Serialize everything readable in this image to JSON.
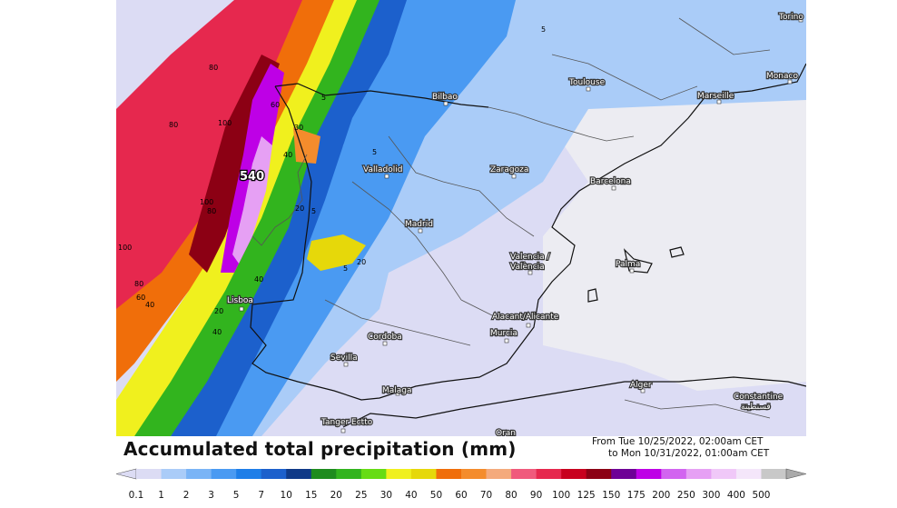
{
  "title": "Accumulated total precipitation (mm)",
  "period": {
    "from": "From Tue 10/25/2022, 02:00am CET",
    "to": "to Mon 10/31/2022, 01:00am CET"
  },
  "legend": {
    "unit": "mm",
    "labels": [
      "0.1",
      "1",
      "2",
      "3",
      "5",
      "7",
      "10",
      "15",
      "20",
      "25",
      "30",
      "40",
      "50",
      "60",
      "70",
      "80",
      "90",
      "100",
      "125",
      "150",
      "175",
      "200",
      "250",
      "300",
      "400",
      "500"
    ],
    "colors": [
      "#dcdcf4",
      "#aaccf8",
      "#7ab4f6",
      "#4a9af2",
      "#1e7ee8",
      "#1c60cc",
      "#103a88",
      "#1e8c1e",
      "#32b41e",
      "#66dc14",
      "#f0f01e",
      "#e6d80a",
      "#f06e0a",
      "#f48c2c",
      "#f4aa7c",
      "#f05a7c",
      "#e6284e",
      "#c8001e",
      "#8c0014",
      "#6e0096",
      "#be00e6",
      "#d264f0",
      "#e6a0f4",
      "#f0c8f8",
      "#f4e6fa",
      "#c8c8c8"
    ]
  },
  "cities": [
    {
      "name": "Torino"
    },
    {
      "name": "Toulouse"
    },
    {
      "name": "Monaco"
    },
    {
      "name": "Marseille"
    },
    {
      "name": "Bilbao"
    },
    {
      "name": "Valladolid"
    },
    {
      "name": "Zaragoza"
    },
    {
      "name": "Barcelona"
    },
    {
      "name": "Madrid"
    },
    {
      "name": "Valencia /"
    },
    {
      "name": "València"
    },
    {
      "name": "Palma"
    },
    {
      "name": "Lisboa"
    },
    {
      "name": "Alacant/Alicante"
    },
    {
      "name": "Murcia"
    },
    {
      "name": "Cordoba"
    },
    {
      "name": "Sevilla"
    },
    {
      "name": "Malaga"
    },
    {
      "name": "Alger"
    },
    {
      "name": "Constantine"
    },
    {
      "name": "قسنطينة"
    },
    {
      "name": "Tanger Ectto"
    },
    {
      "name": "Oran"
    }
  ],
  "contour_labels": [
    "80",
    "80",
    "100",
    "100",
    "100",
    "80",
    "80",
    "60",
    "40",
    "60",
    "30",
    "40",
    "20",
    "20",
    "5",
    "5",
    "5",
    "5",
    "5",
    "20",
    "40",
    "40"
  ],
  "peak_value": "540"
}
